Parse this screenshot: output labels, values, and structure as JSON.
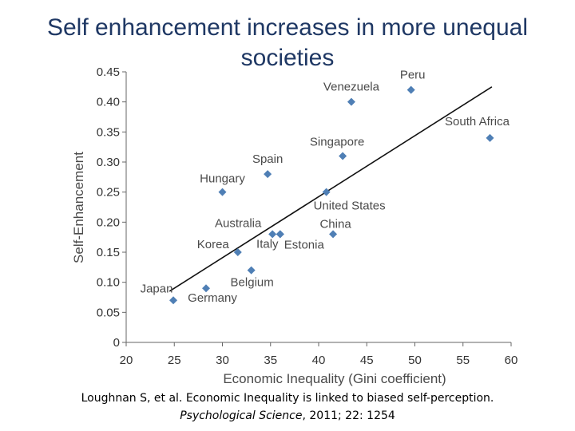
{
  "slide": {
    "title": "Self enhancement increases in more unequal societies",
    "caption_line1": "Loughnan S, et al. Economic Inequality is linked to biased self-perception.",
    "caption_journal": "Psychological Science",
    "caption_rest": ", 2011; 22: 1254"
  },
  "chart_data": {
    "type": "scatter",
    "xlabel": "Economic Inequality (Gini coefficient)",
    "ylabel": "Self-Enhancement",
    "xlim": [
      20,
      60
    ],
    "ylim": [
      0,
      0.45
    ],
    "x_ticks": [
      "20",
      "25",
      "30",
      "35",
      "40",
      "45",
      "50",
      "55",
      "60"
    ],
    "y_ticks": [
      "0",
      "0.05",
      "0.10",
      "0.15",
      "0.20",
      "0.25",
      "0.30",
      "0.35",
      "0.40",
      "0.45"
    ],
    "grid": false,
    "marker_color": "#4f7fb5",
    "trendline": {
      "from": [
        24.5,
        0.085
      ],
      "to": [
        58,
        0.425
      ],
      "color": "#111111"
    },
    "points": [
      {
        "label": "Japan",
        "x": 24.9,
        "y": 0.07
      },
      {
        "label": "Germany",
        "x": 28.3,
        "y": 0.09
      },
      {
        "label": "Belgium",
        "x": 33.0,
        "y": 0.12
      },
      {
        "label": "Korea",
        "x": 31.6,
        "y": 0.15
      },
      {
        "label": "Italy",
        "x": 36.0,
        "y": 0.18
      },
      {
        "label": "Australia",
        "x": 35.2,
        "y": 0.18
      },
      {
        "label": "Estonia",
        "x": 36.0,
        "y": 0.18
      },
      {
        "label": "China",
        "x": 41.5,
        "y": 0.18
      },
      {
        "label": "Hungary",
        "x": 30.0,
        "y": 0.25
      },
      {
        "label": "United States",
        "x": 40.8,
        "y": 0.25
      },
      {
        "label": "Spain",
        "x": 34.7,
        "y": 0.28
      },
      {
        "label": "Singapore",
        "x": 42.5,
        "y": 0.31
      },
      {
        "label": "Venezuela",
        "x": 43.4,
        "y": 0.4
      },
      {
        "label": "Peru",
        "x": 49.6,
        "y": 0.42
      },
      {
        "label": "South Africa",
        "x": 57.8,
        "y": 0.34
      }
    ]
  }
}
